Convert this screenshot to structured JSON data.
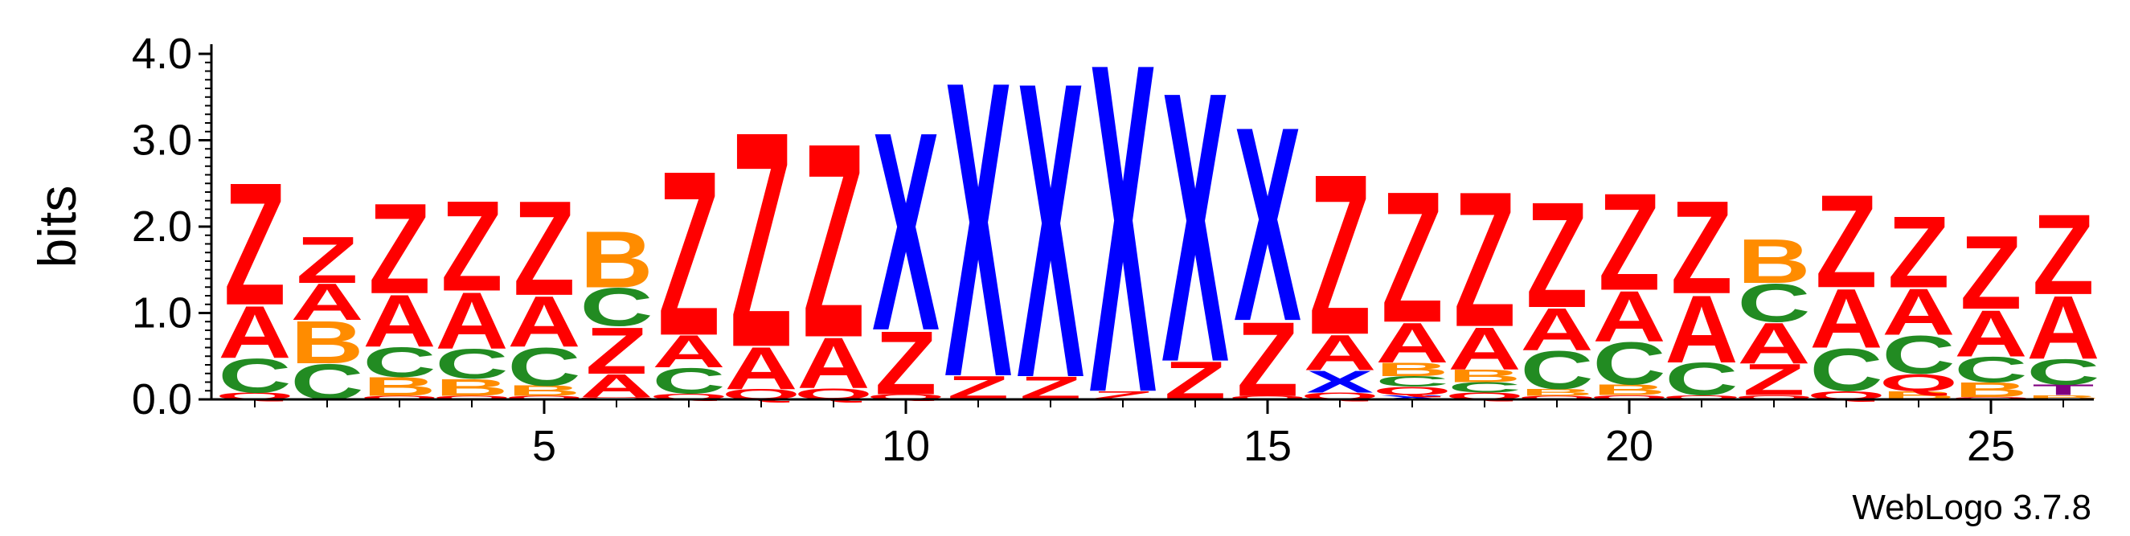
{
  "footer": {
    "credit": "WebLogo 3.7.8"
  },
  "colors": {
    "Z": "#ff0000",
    "A": "#ff0000",
    "C": "#228b22",
    "B": "#ff8c00",
    "X": "#0000ff",
    "Q": "#ff0000",
    "T": "#800080"
  },
  "chart_data": {
    "type": "sequence-logo",
    "ylabel": "bits",
    "ylim": [
      0,
      4.0
    ],
    "ytick_labels": [
      "0.0",
      "1.0",
      "2.0",
      "3.0",
      "4.0"
    ],
    "xtick_labels": [
      "5",
      "10",
      "15",
      "20",
      "25"
    ],
    "positions": [
      {
        "pos": 1,
        "stack": [
          [
            "Q",
            0.08
          ],
          [
            "C",
            0.4
          ],
          [
            "A",
            0.62
          ],
          [
            "Z",
            1.45
          ]
        ]
      },
      {
        "pos": 2,
        "stack": [
          [
            "C",
            0.42
          ],
          [
            "B",
            0.5
          ],
          [
            "A",
            0.43
          ],
          [
            "Z",
            0.55
          ]
        ]
      },
      {
        "pos": 3,
        "stack": [
          [
            "Q",
            0.04
          ],
          [
            "B",
            0.22
          ],
          [
            "C",
            0.35
          ],
          [
            "A",
            0.62
          ],
          [
            "Z",
            1.07
          ]
        ]
      },
      {
        "pos": 4,
        "stack": [
          [
            "Q",
            0.04
          ],
          [
            "B",
            0.2
          ],
          [
            "C",
            0.35
          ],
          [
            "A",
            0.67
          ],
          [
            "Z",
            1.07
          ]
        ]
      },
      {
        "pos": 5,
        "stack": [
          [
            "Q",
            0.04
          ],
          [
            "B",
            0.12
          ],
          [
            "C",
            0.45
          ],
          [
            "A",
            0.6
          ],
          [
            "Z",
            1.12
          ]
        ]
      },
      {
        "pos": 6,
        "stack": [
          [
            "Q",
            0.03
          ],
          [
            "A",
            0.27
          ],
          [
            "Z",
            0.55
          ],
          [
            "C",
            0.45
          ],
          [
            "B",
            0.67
          ]
        ]
      },
      {
        "pos": 7,
        "stack": [
          [
            "Q",
            0.07
          ],
          [
            "C",
            0.3
          ],
          [
            "A",
            0.38
          ],
          [
            "Z",
            1.95
          ]
        ]
      },
      {
        "pos": 8,
        "stack": [
          [
            "Q",
            0.12
          ],
          [
            "A",
            0.5
          ],
          [
            "Z",
            2.55
          ]
        ]
      },
      {
        "pos": 9,
        "stack": [
          [
            "Q",
            0.13
          ],
          [
            "A",
            0.6
          ],
          [
            "Z",
            2.3
          ]
        ]
      },
      {
        "pos": 10,
        "stack": [
          [
            "Q",
            0.06
          ],
          [
            "Z",
            0.75
          ],
          [
            "X",
            2.35
          ]
        ]
      },
      {
        "pos": 11,
        "stack": [
          [
            "Z",
            0.28
          ],
          [
            "X",
            3.5
          ]
        ]
      },
      {
        "pos": 12,
        "stack": [
          [
            "Z",
            0.27
          ],
          [
            "X",
            3.5
          ]
        ]
      },
      {
        "pos": 13,
        "stack": [
          [
            "Z",
            0.1
          ],
          [
            "X",
            3.9
          ]
        ]
      },
      {
        "pos": 14,
        "stack": [
          [
            "Z",
            0.45
          ],
          [
            "X",
            3.2
          ]
        ]
      },
      {
        "pos": 15,
        "stack": [
          [
            "Q",
            0.04
          ],
          [
            "Z",
            0.88
          ],
          [
            "X",
            2.3
          ]
        ]
      },
      {
        "pos": 16,
        "stack": [
          [
            "Q",
            0.08
          ],
          [
            "X",
            0.26
          ],
          [
            "A",
            0.42
          ],
          [
            "Z",
            1.9
          ]
        ]
      },
      {
        "pos": 17,
        "stack": [
          [
            "X",
            0.05
          ],
          [
            "Q",
            0.1
          ],
          [
            "C",
            0.12
          ],
          [
            "B",
            0.16
          ],
          [
            "A",
            0.47
          ],
          [
            "Z",
            1.55
          ]
        ]
      },
      {
        "pos": 18,
        "stack": [
          [
            "Q",
            0.08
          ],
          [
            "C",
            0.12
          ],
          [
            "B",
            0.15
          ],
          [
            "A",
            0.5
          ],
          [
            "Z",
            1.6
          ]
        ]
      },
      {
        "pos": 19,
        "stack": [
          [
            "Q",
            0.04
          ],
          [
            "B",
            0.08
          ],
          [
            "C",
            0.45
          ],
          [
            "A",
            0.5
          ],
          [
            "Z",
            1.25
          ]
        ]
      },
      {
        "pos": 20,
        "stack": [
          [
            "Q",
            0.05
          ],
          [
            "B",
            0.12
          ],
          [
            "C",
            0.5
          ],
          [
            "A",
            0.6
          ],
          [
            "Z",
            1.15
          ]
        ]
      },
      {
        "pos": 21,
        "stack": [
          [
            "Q",
            0.05
          ],
          [
            "C",
            0.38
          ],
          [
            "A",
            0.8
          ],
          [
            "Z",
            1.1
          ]
        ]
      },
      {
        "pos": 22,
        "stack": [
          [
            "Q",
            0.05
          ],
          [
            "Z",
            0.37
          ],
          [
            "A",
            0.48
          ],
          [
            "C",
            0.45
          ],
          [
            "B",
            0.52
          ]
        ]
      },
      {
        "pos": 23,
        "stack": [
          [
            "Q",
            0.1
          ],
          [
            "C",
            0.5
          ],
          [
            "A",
            0.7
          ],
          [
            "Z",
            1.1
          ]
        ]
      },
      {
        "pos": 24,
        "stack": [
          [
            "B",
            0.1
          ],
          [
            "Q",
            0.2
          ],
          [
            "C",
            0.45
          ],
          [
            "A",
            0.55
          ],
          [
            "Z",
            0.85
          ]
        ]
      },
      {
        "pos": 25,
        "stack": [
          [
            "Q",
            0.03
          ],
          [
            "B",
            0.17
          ],
          [
            "C",
            0.3
          ],
          [
            "A",
            0.55
          ],
          [
            "Z",
            0.87
          ]
        ]
      },
      {
        "pos": 26,
        "stack": [
          [
            "B",
            0.05
          ],
          [
            "T",
            0.12
          ],
          [
            "C",
            0.3
          ],
          [
            "A",
            0.75
          ],
          [
            "Z",
            0.95
          ]
        ]
      }
    ]
  }
}
